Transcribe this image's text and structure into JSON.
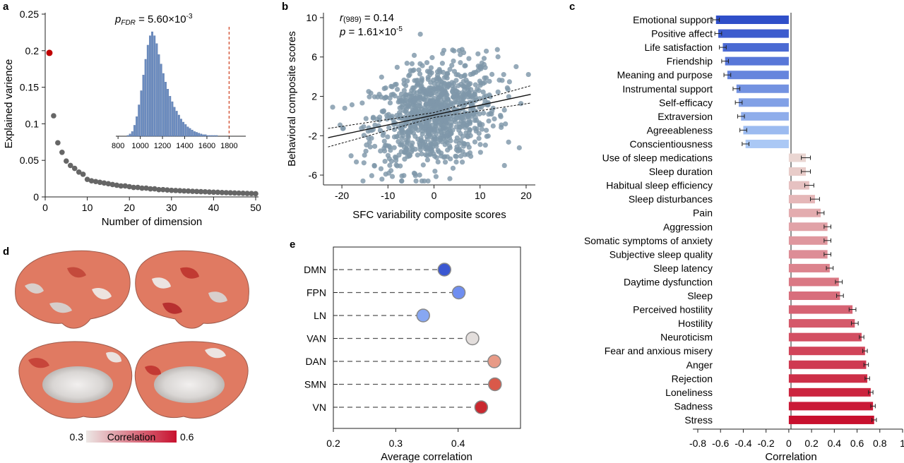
{
  "panel_labels": {
    "a": "a",
    "b": "b",
    "c": "c",
    "d": "d",
    "e": "e"
  },
  "colors": {
    "red_dot": "#c00000",
    "gray_dot": "#666666",
    "hist_bar": "#6b8cc0",
    "scatter": "#7f97aa",
    "neg_dark": "#2f4fc9",
    "neg_light": "#aac8f5",
    "pos_light": "#ead6d2",
    "pos_dark": "#c8102e",
    "cbar_low": "#ece7e5",
    "cbar_high": "#c8102e",
    "brain_base": "#e07a62"
  },
  "chart_data": [
    {
      "id": "a",
      "type": "scatter",
      "xlabel": "Number of dimension",
      "ylabel": "Explained varience",
      "xlim": [
        0,
        50
      ],
      "ylim": [
        0,
        0.25
      ],
      "xticks": [
        "0",
        "10",
        "20",
        "30",
        "40",
        "50"
      ],
      "yticks": [
        "0",
        "0.05",
        "0.1",
        "0.15",
        "0.2",
        "0.25"
      ],
      "highlight": {
        "x": 1,
        "y": 0.197
      },
      "x": [
        2,
        3,
        4,
        5,
        6,
        7,
        8,
        9,
        10,
        11,
        12,
        13,
        14,
        15,
        16,
        17,
        18,
        19,
        20,
        21,
        22,
        23,
        24,
        25,
        26,
        27,
        28,
        29,
        30,
        31,
        32,
        33,
        34,
        35,
        36,
        37,
        38,
        39,
        40,
        41,
        42,
        43,
        44,
        45,
        46,
        47,
        48,
        49,
        50
      ],
      "y": [
        0.111,
        0.074,
        0.061,
        0.049,
        0.043,
        0.039,
        0.034,
        0.031,
        0.024,
        0.022,
        0.021,
        0.02,
        0.019,
        0.018,
        0.017,
        0.016,
        0.015,
        0.015,
        0.014,
        0.013,
        0.013,
        0.012,
        0.012,
        0.011,
        0.011,
        0.01,
        0.01,
        0.0095,
        0.009,
        0.0088,
        0.0085,
        0.0082,
        0.008,
        0.0077,
        0.0074,
        0.0072,
        0.007,
        0.0067,
        0.0065,
        0.0063,
        0.006,
        0.0058,
        0.0056,
        0.0054,
        0.0052,
        0.005,
        0.0048,
        0.0046,
        0.0044
      ]
    },
    {
      "id": "a-inset",
      "type": "bar",
      "annotation_prefix": "p",
      "annotation_sub": "FDR",
      "annotation_value": " = 5.60×10",
      "annotation_exp": "-3",
      "xlim": [
        780,
        1950
      ],
      "xticks": [
        "800",
        "1000",
        "1200",
        "1400",
        "1600",
        "1800"
      ],
      "bin_start": 880,
      "bin_width": 20,
      "counts": [
        1,
        3,
        6,
        14,
        25,
        40,
        58,
        78,
        98,
        116,
        128,
        133,
        128,
        118,
        104,
        92,
        80,
        69,
        60,
        51,
        44,
        37,
        32,
        27,
        22,
        18,
        15,
        12,
        10,
        8,
        6,
        5,
        4,
        3,
        2,
        2,
        1,
        1,
        1,
        1,
        1
      ],
      "observed_line": 1800
    },
    {
      "id": "b",
      "type": "scatter",
      "xlabel": "SFC variability composite scores",
      "ylabel": "Behavioral composite scores",
      "xlim": [
        -24,
        22
      ],
      "ylim": [
        -7,
        10.5
      ],
      "xticks": [
        "-20",
        "-10",
        "0",
        "10",
        "20"
      ],
      "yticks": [
        "-6",
        "-2",
        "2",
        "6",
        "10"
      ],
      "stat_r_label": "r",
      "stat_r_sub": "(989)",
      "stat_r_value": " = 0.14",
      "stat_p_label": "p",
      "stat_p_value": " = 1.61×10",
      "stat_p_exp": "-5",
      "fit": {
        "slope": 0.1,
        "intercept": 0.1
      },
      "n_points": 989
    },
    {
      "id": "c",
      "type": "bar",
      "xlabel": "Correlation",
      "xlim": [
        -0.8,
        1
      ],
      "xticks": [
        "-0.8",
        "-0.6",
        "-0.4",
        "-0.2",
        "0",
        "0.2",
        "0.4",
        "0.6",
        "0.8",
        "1"
      ],
      "categories": [
        "Emotional support",
        "Positive affect",
        "Life satisfaction",
        "Friendship",
        "Meaning and purpose",
        "Instrumental support",
        "Self-efficacy",
        "Extraversion",
        "Agreeableness",
        "Conscientiousness",
        "Use of sleep medications",
        "Sleep duration",
        "Habitual sleep efficiency",
        "Sleep disturbances",
        "Pain",
        "Aggression",
        "Somatic symptoms of anxiety",
        "Subjective sleep quality",
        "Sleep latency",
        "Daytime dysfunction",
        "Sleep",
        "Perceived hostility",
        "Hostility",
        "Neuroticism",
        "Fear and anxious misery",
        "Anger",
        "Rejection",
        "Loneliness",
        "Sadness",
        "Stress"
      ],
      "values": [
        -0.64,
        -0.62,
        -0.58,
        -0.56,
        -0.54,
        -0.46,
        -0.44,
        -0.42,
        -0.4,
        -0.38,
        0.15,
        0.15,
        0.18,
        0.23,
        0.28,
        0.34,
        0.34,
        0.34,
        0.36,
        0.44,
        0.45,
        0.56,
        0.58,
        0.64,
        0.67,
        0.68,
        0.69,
        0.72,
        0.74,
        0.75
      ],
      "errors": [
        0.03,
        0.03,
        0.03,
        0.03,
        0.03,
        0.03,
        0.03,
        0.03,
        0.03,
        0.03,
        0.04,
        0.04,
        0.04,
        0.04,
        0.03,
        0.03,
        0.03,
        0.03,
        0.03,
        0.03,
        0.03,
        0.03,
        0.03,
        0.02,
        0.02,
        0.02,
        0.02,
        0.02,
        0.02,
        0.02
      ]
    },
    {
      "id": "d",
      "type": "heatmap",
      "colorbar": {
        "min_label": "0.3",
        "title": "Correlation",
        "max_label": "0.6"
      }
    },
    {
      "id": "e",
      "type": "scatter",
      "xlabel": "Average correlation",
      "xlim": [
        0.2,
        0.5
      ],
      "xticks": [
        "0.2",
        "0.3",
        "0.4"
      ],
      "categories": [
        "DMN",
        "FPN",
        "LN",
        "VAN",
        "DAN",
        "SMN",
        "VN"
      ],
      "values": [
        0.378,
        0.401,
        0.344,
        0.423,
        0.458,
        0.459,
        0.437
      ],
      "colors": [
        "#3b57d1",
        "#6f8ef0",
        "#87a7f2",
        "#e3dedc",
        "#e89a86",
        "#d9594a",
        "#c9282f"
      ]
    }
  ]
}
